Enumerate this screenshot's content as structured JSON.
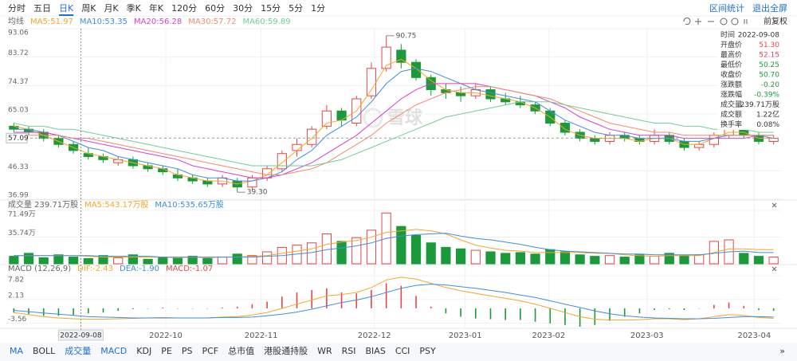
{
  "period_tabs": {
    "items": [
      "分时",
      "五日",
      "日K",
      "周K",
      "月K",
      "季K",
      "年K",
      "120分",
      "60分",
      "30分",
      "15分",
      "5分",
      "1分"
    ],
    "active": 2
  },
  "top_links": [
    "区间统计",
    "退出全屏"
  ],
  "adjust_mode": "前复权",
  "watermark": "雪球",
  "info": [
    {
      "label": "时间",
      "value": "2022-09-08",
      "color": "#333333"
    },
    {
      "label": "开盘价",
      "value": "51.30",
      "color": "#e5454a"
    },
    {
      "label": "最高价",
      "value": "52.15",
      "color": "#e5454a"
    },
    {
      "label": "最低价",
      "value": "50.25",
      "color": "#1a9a3a"
    },
    {
      "label": "收盘价",
      "value": "50.70",
      "color": "#1a9a3a"
    },
    {
      "label": "涨跌额",
      "value": "-0.20",
      "color": "#1a9a3a"
    },
    {
      "label": "涨跌幅",
      "value": "-0.39%",
      "color": "#1a9a3a"
    },
    {
      "label": "成交量",
      "value": "239.71万股",
      "color": "#333333"
    },
    {
      "label": "成交额",
      "value": "1.22亿",
      "color": "#333333"
    },
    {
      "label": "换手率",
      "value": "0.08%",
      "color": "#333333"
    }
  ],
  "indicator_tabs": {
    "items": [
      "MA",
      "BOLL",
      "成交量",
      "MACD",
      "KDJ",
      "PE",
      "PS",
      "PCF",
      "总市值",
      "港股通持股",
      "WR",
      "RSI",
      "BIAS",
      "CCI",
      "PSY"
    ],
    "active": [
      0,
      2,
      3
    ],
    "more": "»"
  },
  "chart_data": [
    {
      "type": "candlestick",
      "label": "均线",
      "up_color": "#e5454a",
      "down_color": "#1a9a3a",
      "open": [
        61,
        60,
        59,
        57,
        55,
        52,
        51,
        49,
        50,
        48,
        47,
        45,
        44,
        43,
        42,
        43,
        41,
        44,
        47,
        53,
        55,
        61,
        66,
        62,
        71,
        80,
        86,
        82,
        77,
        73,
        72,
        71,
        73,
        70,
        69,
        68,
        66,
        62,
        59,
        57,
        56,
        58,
        57,
        56,
        58,
        56,
        54,
        55,
        58,
        60,
        58,
        56
      ],
      "high": [
        62,
        61,
        60,
        58,
        56,
        54,
        52,
        51,
        51,
        49,
        48,
        47,
        45,
        44,
        45,
        44,
        45,
        48,
        53,
        57,
        61,
        68,
        67,
        71,
        82,
        90.75,
        88,
        83,
        78,
        75,
        74,
        75,
        74,
        72,
        71,
        69,
        67,
        63,
        60,
        58,
        59,
        59,
        58,
        60,
        59,
        57,
        56,
        59,
        63,
        61,
        59,
        58
      ],
      "low": [
        59,
        58,
        56,
        54,
        52,
        50,
        49,
        48,
        47,
        46,
        45,
        43,
        42,
        41,
        41,
        39.3,
        40,
        43,
        46,
        51,
        54,
        60,
        61,
        61,
        70,
        79,
        80,
        76,
        71,
        70,
        69,
        70,
        69,
        68,
        67,
        65,
        61,
        58,
        56,
        55,
        55,
        56,
        55,
        55,
        55,
        53,
        53,
        54,
        57,
        57,
        55,
        55
      ],
      "close": [
        60,
        59,
        57,
        55,
        53,
        51,
        50,
        50,
        48,
        47,
        46,
        44,
        43,
        42,
        44,
        41,
        44,
        47,
        52,
        55,
        60,
        66,
        63,
        70,
        80,
        87,
        82,
        77,
        73,
        72,
        71,
        73,
        70,
        69,
        68,
        66,
        62,
        59,
        57,
        56,
        58,
        57,
        56,
        58,
        56,
        54,
        55,
        58,
        60,
        58,
        56,
        57
      ],
      "series": [
        {
          "name": "MA5:51.97",
          "color": "#f5a623",
          "values": [
            61,
            60,
            58,
            56,
            54,
            52,
            51,
            50,
            49,
            48,
            47,
            45,
            44,
            43,
            43,
            42,
            43,
            45,
            49,
            53,
            57,
            62,
            63,
            66,
            73,
            81,
            83,
            80,
            76,
            73,
            72,
            72,
            71,
            70,
            69,
            67,
            64,
            60,
            58,
            57,
            57,
            57,
            56,
            57,
            57,
            55,
            55,
            57,
            59,
            59,
            57,
            57
          ]
        },
        {
          "name": "MA10:53.35",
          "color": "#3d8fe0",
          "values": [
            60,
            60,
            59,
            58,
            56,
            54,
            53,
            51,
            50,
            49,
            48,
            47,
            45,
            44,
            44,
            43,
            43,
            44,
            46,
            50,
            53,
            58,
            61,
            64,
            69,
            75,
            79,
            80,
            79,
            77,
            75,
            73,
            72,
            71,
            70,
            69,
            66,
            63,
            61,
            59,
            58,
            58,
            57,
            57,
            57,
            56,
            56,
            57,
            58,
            58,
            58,
            57
          ]
        },
        {
          "name": "MA20:56.28",
          "color": "#d63fd0",
          "values": [
            59,
            59,
            59,
            58,
            57,
            56,
            55,
            54,
            53,
            52,
            51,
            50,
            48,
            47,
            46,
            45,
            44,
            44,
            45,
            47,
            49,
            52,
            55,
            58,
            62,
            66,
            70,
            73,
            75,
            75,
            75,
            75,
            74,
            73,
            72,
            71,
            69,
            67,
            64,
            62,
            60,
            59,
            58,
            58,
            58,
            57,
            57,
            57,
            57,
            57,
            58,
            58
          ]
        },
        {
          "name": "MA30:57.72",
          "color": "#f28b6b",
          "values": [
            58,
            58,
            58,
            58,
            57,
            57,
            56,
            55,
            54,
            53,
            52,
            51,
            50,
            49,
            48,
            47,
            46,
            45,
            45,
            46,
            47,
            49,
            52,
            55,
            58,
            62,
            65,
            68,
            70,
            72,
            73,
            74,
            74,
            73,
            72,
            71,
            70,
            68,
            66,
            64,
            62,
            61,
            60,
            59,
            59,
            58,
            58,
            58,
            58,
            58,
            58,
            58
          ]
        },
        {
          "name": "MA60:59.89",
          "color": "#6fcf97",
          "values": [
            62,
            61,
            61,
            60,
            60,
            59,
            58,
            57,
            56,
            55,
            54,
            53,
            52,
            51,
            50,
            49,
            48,
            48,
            48,
            48,
            48,
            49,
            50,
            52,
            54,
            56,
            58,
            60,
            62,
            64,
            65,
            66,
            67,
            68,
            69,
            69,
            69,
            68,
            67,
            66,
            65,
            64,
            63,
            62,
            62,
            61,
            61,
            60,
            60,
            60,
            59,
            59
          ]
        }
      ],
      "ylim": [
        36.99,
        93.06
      ],
      "yticks": [
        93.06,
        83.72,
        74.37,
        65.03,
        46.33,
        36.99
      ],
      "xticks": [
        {
          "value": 10.2,
          "label": "2022-10"
        },
        {
          "value": 16.6,
          "label": "2022-11"
        },
        {
          "value": 24.2,
          "label": "2022-12"
        },
        {
          "value": 30.3,
          "label": "2023-01"
        },
        {
          "value": 35.9,
          "label": "2023-02"
        },
        {
          "value": 42.5,
          "label": "2023-03"
        },
        {
          "value": 49.7,
          "label": "2023-04"
        }
      ],
      "cursor": {
        "value": 4.5,
        "label": "2022-09-08"
      },
      "price_line": {
        "value": 57.09,
        "label": "57.09"
      },
      "annotations": [
        {
          "index": 25,
          "value": 90.75,
          "label": "90.75"
        },
        {
          "index": 15,
          "value": 39.3,
          "label": "39.30"
        }
      ]
    },
    {
      "type": "volume",
      "label": "成交量 239.71万股",
      "values": [
        10,
        14,
        8,
        12,
        9,
        7,
        11,
        8,
        12,
        6,
        9,
        8,
        10,
        7,
        9,
        13,
        11,
        16,
        22,
        25,
        28,
        40,
        30,
        35,
        45,
        68,
        50,
        38,
        28,
        22,
        20,
        18,
        16,
        14,
        15,
        13,
        19,
        16,
        12,
        10,
        11,
        9,
        12,
        10,
        14,
        11,
        12,
        30,
        32,
        14,
        10,
        9
      ],
      "series": [
        {
          "name": "MA5:543.17万股",
          "color": "#f5a623",
          "values": [
            11,
            11,
            11,
            11,
            11,
            10,
            9,
            9,
            9,
            9,
            9,
            8,
            9,
            8,
            9,
            9,
            10,
            11,
            14,
            17,
            20,
            26,
            29,
            31,
            36,
            42,
            44,
            46,
            44,
            40,
            32,
            25,
            21,
            18,
            17,
            15,
            15,
            15,
            15,
            14,
            14,
            12,
            11,
            10,
            11,
            11,
            11,
            15,
            20,
            20,
            19,
            19
          ]
        },
        {
          "name": "MA10:535.65万股",
          "color": "#3d8fe0",
          "values": [
            11,
            11,
            11,
            11,
            11,
            11,
            10,
            10,
            10,
            10,
            9,
            9,
            9,
            9,
            9,
            9,
            9,
            10,
            11,
            13,
            15,
            19,
            21,
            24,
            28,
            34,
            37,
            39,
            40,
            41,
            37,
            34,
            32,
            29,
            26,
            22,
            19,
            17,
            16,
            15,
            14,
            13,
            13,
            12,
            12,
            12,
            12,
            14,
            16,
            17,
            15,
            15
          ]
        }
      ],
      "ylim": [
        0,
        71.49
      ],
      "yticks": [
        {
          "value": 71.49,
          "label": "71.49万"
        },
        {
          "value": 35.74,
          "label": "35.74万"
        }
      ]
    },
    {
      "type": "macd",
      "label": "MACD (12,26,9)",
      "histogram": {
        "name": "MACD:-1.07",
        "up_color": "#e5454a",
        "down_color": "#1a9a3a",
        "values": [
          -1,
          -1.4,
          -1.8,
          -1.8,
          -1.6,
          -1.2,
          -1,
          -0.6,
          -0.2,
          0,
          0.2,
          0,
          0,
          0,
          0.2,
          0.4,
          1,
          1.6,
          2.8,
          3.8,
          4.4,
          4.8,
          3.8,
          3.6,
          4.4,
          6,
          5.4,
          3,
          0.4,
          -1.2,
          -2,
          -2.4,
          -2.6,
          -2.8,
          -2.8,
          -3.2,
          -3.6,
          -4,
          -4.4,
          -4,
          -3,
          -2,
          -1.2,
          -0.4,
          -0.2,
          -0.4,
          0,
          0.8,
          1.4,
          0.6,
          -0.4,
          -0.6
        ]
      },
      "series": [
        {
          "name": "DIF:-2.43",
          "color": "#f5a623",
          "values": [
            -1,
            -1.5,
            -2,
            -2.3,
            -2.5,
            -2.6,
            -2.6,
            -2.5,
            -2.4,
            -2.3,
            -2.2,
            -2.3,
            -2.3,
            -2.3,
            -2.1,
            -2,
            -1.6,
            -1,
            0,
            1,
            2,
            3,
            3.3,
            3.8,
            5,
            6.8,
            7.5,
            7,
            6,
            5,
            4.2,
            3.6,
            3,
            2.4,
            1.8,
            1,
            0,
            -1,
            -2,
            -2.6,
            -2.8,
            -2.8,
            -2.7,
            -2.5,
            -2.5,
            -2.7,
            -2.5,
            -2,
            -1.5,
            -1.7,
            -2.2,
            -2.4
          ]
        },
        {
          "name": "DEA:-1.90",
          "color": "#3d8fe0",
          "values": [
            -0.5,
            -0.8,
            -1.1,
            -1.4,
            -1.7,
            -2,
            -2.1,
            -2.2,
            -2.3,
            -2.3,
            -2.3,
            -2.3,
            -2.3,
            -2.3,
            -2.2,
            -2.2,
            -2.1,
            -1.8,
            -1.4,
            -0.9,
            -0.2,
            0.6,
            1.4,
            2,
            2.8,
            3.8,
            4.8,
            5.5,
            5.8,
            5.6,
            5.2,
            4.8,
            4.3,
            3.8,
            3.2,
            2.6,
            1.8,
            1,
            0.2,
            -0.6,
            -1.3,
            -1.8,
            -2.1,
            -2.3,
            -2.4,
            -2.5,
            -2.5,
            -2.4,
            -2.2,
            -2,
            -2,
            -2.1
          ]
        }
      ],
      "ylim": [
        -4.6,
        8.2
      ],
      "yticks": [
        7.82,
        2.13,
        -3.56
      ]
    }
  ]
}
